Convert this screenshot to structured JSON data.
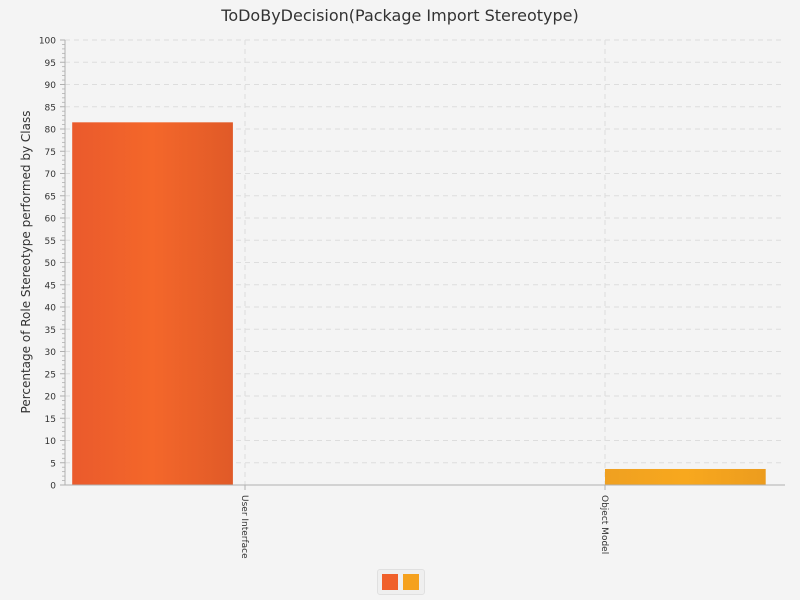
{
  "chart_data": {
    "type": "bar",
    "title": "ToDoByDecision(Package Import Stereotype)",
    "xlabel": "",
    "ylabel": "Percentage of Role Stereotype performed by Class",
    "ylim": [
      0,
      100
    ],
    "y_ticks": [
      0,
      5,
      10,
      15,
      20,
      25,
      30,
      35,
      40,
      45,
      50,
      55,
      60,
      65,
      70,
      75,
      80,
      85,
      90,
      95,
      100
    ],
    "categories": [
      "User Interface",
      "Object Model"
    ],
    "series": [
      {
        "values": [
          81.5,
          0
        ]
      },
      {
        "values": [
          0,
          3.6
        ]
      }
    ],
    "grid": true,
    "legend": "bottom-center"
  },
  "colors": {
    "series": [
      "#f0602a",
      "#f5a11e"
    ],
    "grid": "#dddddd",
    "axis": "#b0b0b0",
    "text": "#333333"
  }
}
